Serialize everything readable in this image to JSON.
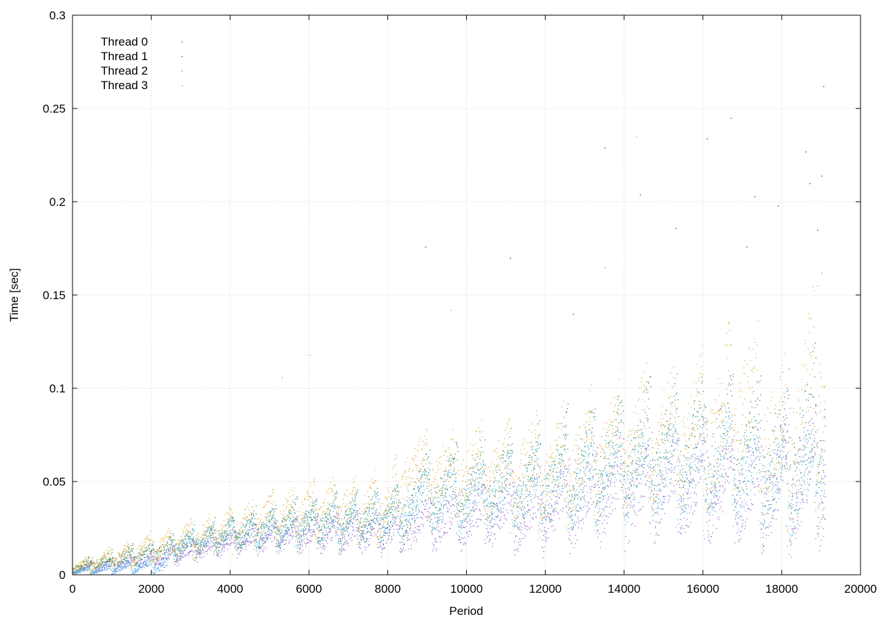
{
  "chart_data": {
    "type": "scatter",
    "xlabel": "Period",
    "ylabel": "Time [sec]",
    "xlim": [
      0,
      20000
    ],
    "ylim": [
      0,
      0.3
    ],
    "xticks": [
      0,
      2000,
      4000,
      6000,
      8000,
      10000,
      12000,
      14000,
      16000,
      18000,
      20000
    ],
    "yticks": [
      0,
      0.05,
      0.1,
      0.15,
      0.2,
      0.25,
      0.3
    ],
    "ytick_labels": [
      "0",
      "0.05",
      "0.1",
      "0.15",
      "0.2",
      "0.25",
      "0.3"
    ],
    "grid": true,
    "legend_position": "top-left",
    "series": [
      {
        "name": "Thread 0",
        "color": "#9a6dd0",
        "trend": [
          [
            0,
            0.003
          ],
          [
            2000,
            0.008
          ],
          [
            4000,
            0.018
          ],
          [
            6000,
            0.022
          ],
          [
            8000,
            0.024
          ],
          [
            9000,
            0.028
          ],
          [
            10000,
            0.032
          ],
          [
            12000,
            0.035
          ],
          [
            14000,
            0.045
          ],
          [
            16000,
            0.05
          ],
          [
            18000,
            0.05
          ],
          [
            19100,
            0.055
          ]
        ],
        "spread": [
          [
            0,
            0.002
          ],
          [
            4000,
            0.006
          ],
          [
            8000,
            0.01
          ],
          [
            12000,
            0.018
          ],
          [
            16000,
            0.025
          ],
          [
            19100,
            0.03
          ]
        ],
        "outliers": []
      },
      {
        "name": "Thread 1",
        "color": "#2e8b70",
        "trend": [
          [
            0,
            0.004
          ],
          [
            2000,
            0.012
          ],
          [
            4000,
            0.022
          ],
          [
            6000,
            0.028
          ],
          [
            8000,
            0.03
          ],
          [
            9000,
            0.045
          ],
          [
            10000,
            0.045
          ],
          [
            12000,
            0.05
          ],
          [
            14000,
            0.065
          ],
          [
            16000,
            0.07
          ],
          [
            18000,
            0.06
          ],
          [
            19100,
            0.075
          ]
        ],
        "spread": [
          [
            0,
            0.003
          ],
          [
            4000,
            0.008
          ],
          [
            8000,
            0.014
          ],
          [
            12000,
            0.025
          ],
          [
            16000,
            0.03
          ],
          [
            19100,
            0.04
          ]
        ],
        "outliers": [
          [
            8950,
            0.176
          ],
          [
            11100,
            0.17
          ],
          [
            12700,
            0.14
          ],
          [
            13500,
            0.229
          ],
          [
            14400,
            0.204
          ],
          [
            15300,
            0.186
          ],
          [
            16100,
            0.234
          ],
          [
            17100,
            0.176
          ],
          [
            17300,
            0.203
          ],
          [
            17900,
            0.198
          ],
          [
            18600,
            0.227
          ],
          [
            18900,
            0.185
          ],
          [
            19000,
            0.214
          ],
          [
            19050,
            0.262
          ],
          [
            18700,
            0.21
          ],
          [
            16700,
            0.245
          ]
        ]
      },
      {
        "name": "Thread 2",
        "color": "#56b4e9",
        "trend": [
          [
            0,
            0.002
          ],
          [
            2400,
            0.006
          ],
          [
            2500,
            0.015
          ],
          [
            4000,
            0.022
          ],
          [
            6000,
            0.028
          ],
          [
            8000,
            0.03
          ],
          [
            9000,
            0.04
          ],
          [
            10000,
            0.042
          ],
          [
            12000,
            0.045
          ],
          [
            14000,
            0.055
          ],
          [
            16000,
            0.055
          ],
          [
            18000,
            0.05
          ],
          [
            19100,
            0.06
          ]
        ],
        "spread": [
          [
            0,
            0.001
          ],
          [
            4000,
            0.007
          ],
          [
            8000,
            0.012
          ],
          [
            12000,
            0.02
          ],
          [
            16000,
            0.025
          ],
          [
            19100,
            0.03
          ]
        ],
        "outliers": []
      },
      {
        "name": "Thread 3",
        "color": "#e2b040",
        "trend": [
          [
            0,
            0.004
          ],
          [
            2000,
            0.014
          ],
          [
            4000,
            0.025
          ],
          [
            6000,
            0.035
          ],
          [
            8000,
            0.035
          ],
          [
            8500,
            0.055
          ],
          [
            10000,
            0.055
          ],
          [
            12000,
            0.055
          ],
          [
            14000,
            0.07
          ],
          [
            16000,
            0.075
          ],
          [
            17000,
            0.09
          ],
          [
            18000,
            0.065
          ],
          [
            19000,
            0.1
          ],
          [
            19100,
            0.08
          ]
        ],
        "spread": [
          [
            0,
            0.003
          ],
          [
            4000,
            0.01
          ],
          [
            8000,
            0.015
          ],
          [
            12000,
            0.025
          ],
          [
            16000,
            0.035
          ],
          [
            19100,
            0.045
          ]
        ],
        "outliers": [
          [
            6000,
            0.118
          ],
          [
            5300,
            0.106
          ],
          [
            9600,
            0.142
          ],
          [
            13500,
            0.165
          ],
          [
            14300,
            0.235
          ],
          [
            18900,
            0.155
          ],
          [
            19000,
            0.162
          ]
        ]
      }
    ]
  }
}
